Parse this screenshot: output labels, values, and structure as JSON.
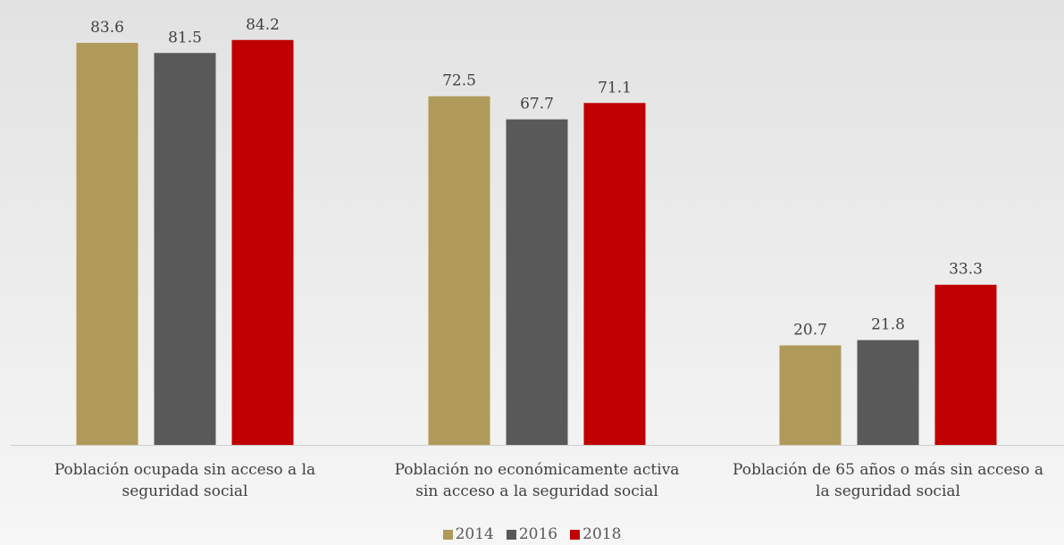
{
  "chart_data": {
    "type": "bar",
    "categories": [
      [
        "Población ocupada sin acceso a la",
        "seguridad social"
      ],
      [
        "Población no económicamente activa",
        "sin acceso a la seguridad social"
      ],
      [
        "Población de 65 años o más sin acceso a",
        "la seguridad social"
      ]
    ],
    "series": [
      {
        "name": "2014",
        "color": "#b09a5a",
        "values": [
          83.6,
          72.5,
          20.7
        ]
      },
      {
        "name": "2016",
        "color": "#595959",
        "values": [
          81.5,
          67.7,
          21.8
        ]
      },
      {
        "name": "2018",
        "color": "#c00000",
        "values": [
          84.2,
          71.1,
          33.3
        ]
      }
    ],
    "ylim": [
      0,
      90
    ],
    "grid": false,
    "legend_position": "bottom"
  }
}
